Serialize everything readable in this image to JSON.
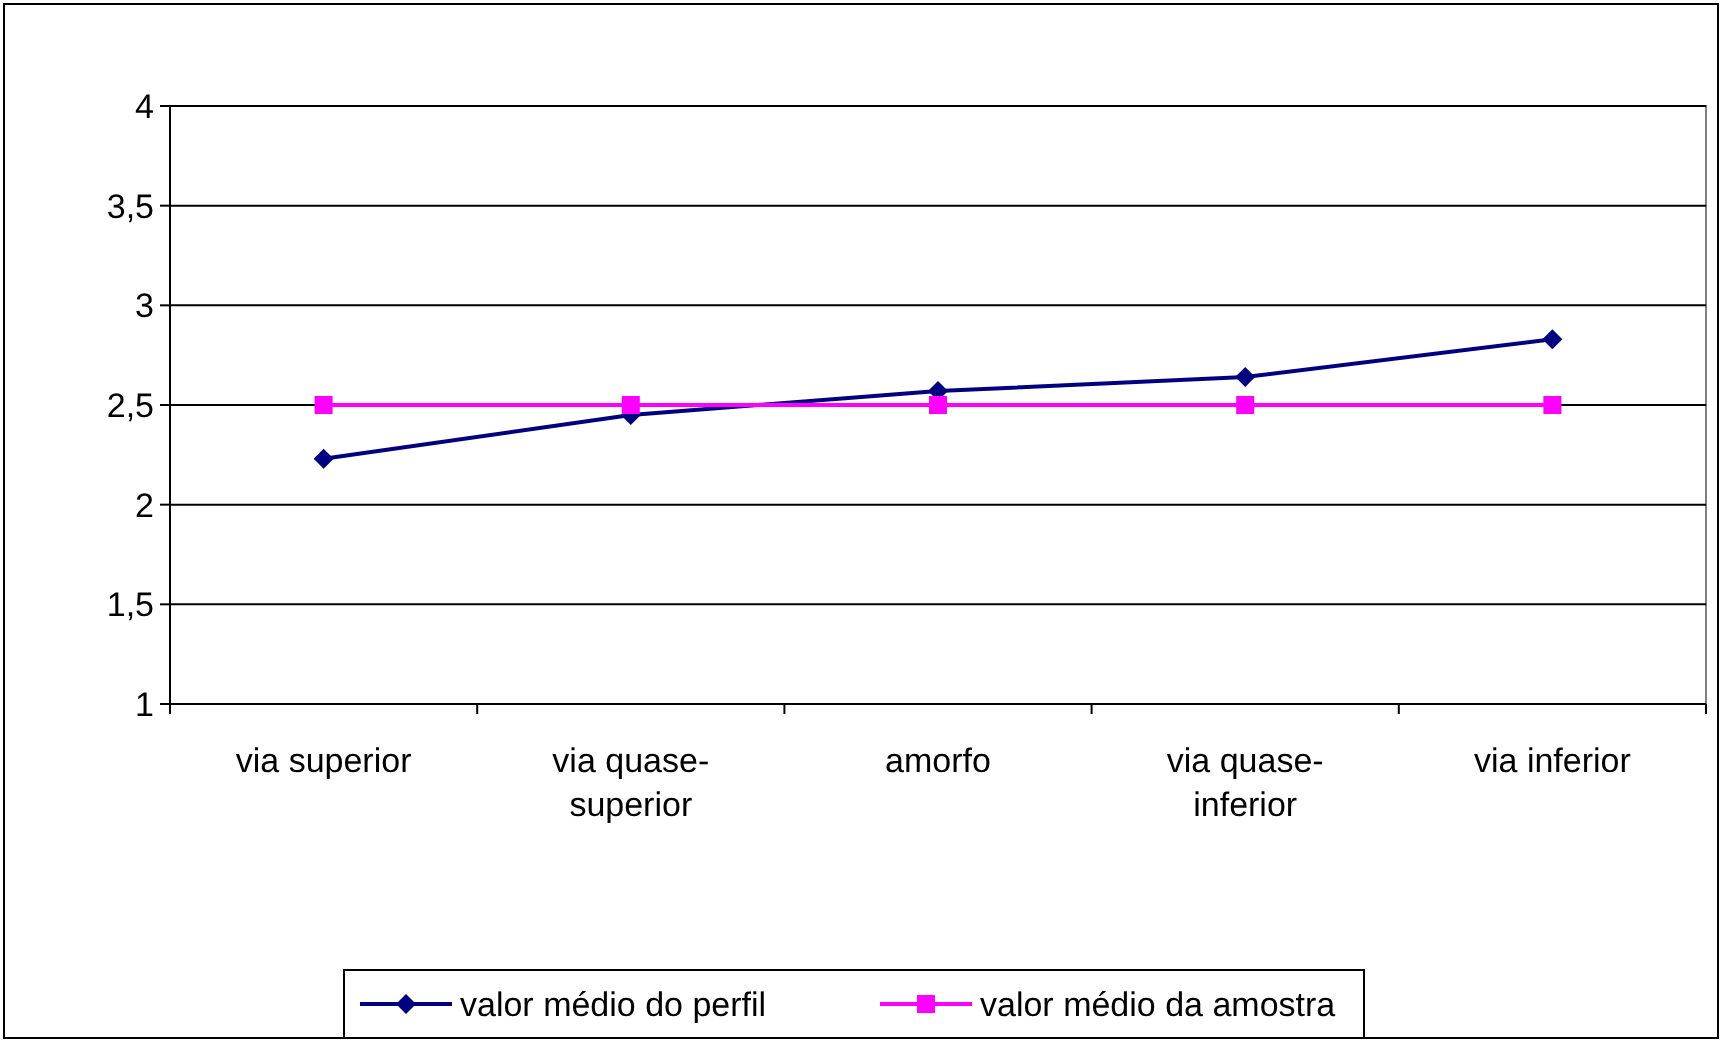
{
  "chart_data": {
    "type": "line",
    "categories": [
      "via superior",
      "via quase-superior",
      "amorfo",
      "via quase-inferior",
      "via inferior"
    ],
    "series": [
      {
        "name": "valor médio do perfil",
        "color": "#000080",
        "marker": "diamond",
        "values": [
          2.23,
          2.45,
          2.57,
          2.64,
          2.83
        ]
      },
      {
        "name": "valor médio da amostra",
        "color": "#ff00ff",
        "marker": "square",
        "values": [
          2.5,
          2.5,
          2.5,
          2.5,
          2.5
        ]
      }
    ],
    "ylim": [
      1,
      4
    ],
    "yticks": [
      1,
      {
        "value": 1.5,
        "label": "1,5"
      },
      2,
      {
        "value": 2.5,
        "label": "2,5"
      },
      3,
      {
        "value": 3.5,
        "label": "3,5"
      },
      4
    ],
    "grid": "y",
    "legend": "bottom"
  }
}
